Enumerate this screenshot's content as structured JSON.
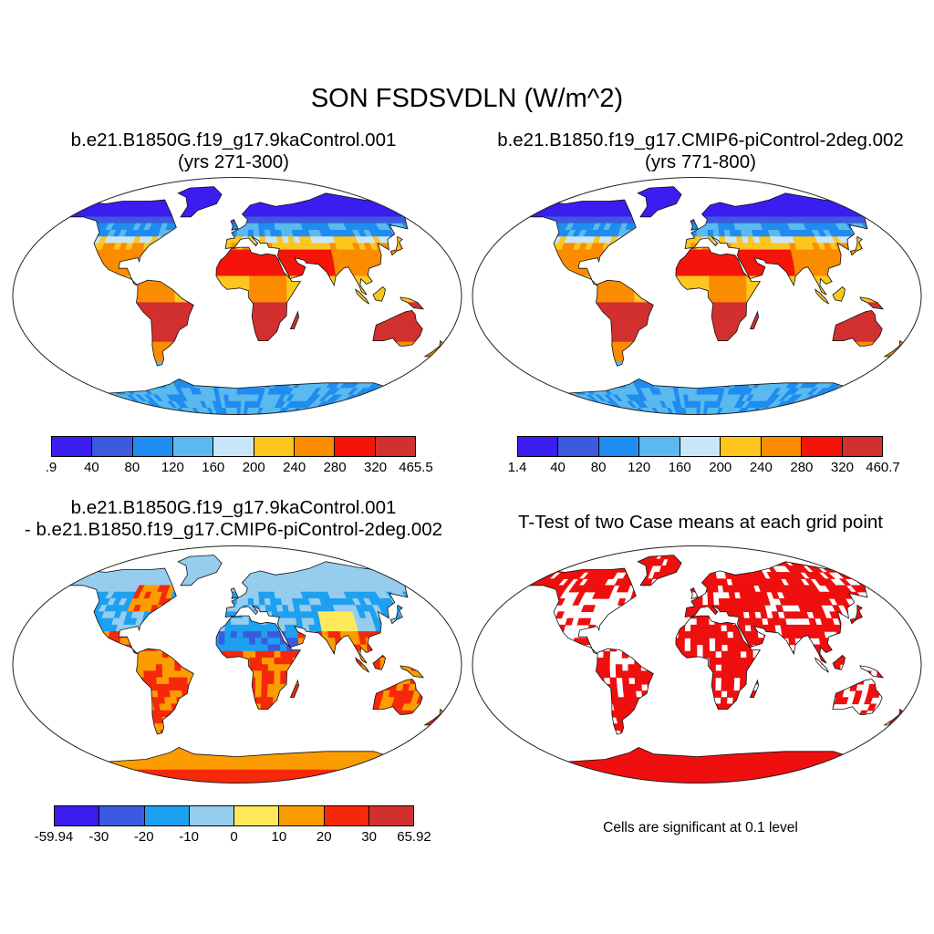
{
  "title": "SON FSDSVDLN (W/m^2)",
  "panels": [
    {
      "id": "case1",
      "title_line1": "b.e21.B1850G.f19_g17.9kaControl.001",
      "title_line2": "(yrs 271-300)",
      "colorbar": {
        "colors": [
          "#3a1ef0",
          "#3c5ae0",
          "#1e8cf0",
          "#5ab9ee",
          "#c9e6f8",
          "#fcc61e",
          "#fb8c00",
          "#f5140a",
          "#d2302f"
        ],
        "labels": [
          ".9",
          "40",
          "80",
          "120",
          "160",
          "200",
          "240",
          "280",
          "320",
          "465.5"
        ]
      }
    },
    {
      "id": "case2",
      "title_line1": "b.e21.B1850.f19_g17.CMIP6-piControl-2deg.002",
      "title_line2": "(yrs 771-800)",
      "colorbar": {
        "colors": [
          "#3a1ef0",
          "#3c5ae0",
          "#1e8cf0",
          "#5ab9ee",
          "#c9e6f8",
          "#fcc61e",
          "#fb8c00",
          "#f5140a",
          "#d2302f"
        ],
        "labels": [
          "1.4",
          "40",
          "80",
          "120",
          "160",
          "200",
          "240",
          "280",
          "320",
          "460.7"
        ]
      }
    },
    {
      "id": "difference",
      "title_line1": "b.e21.B1850G.f19_g17.9kaControl.001",
      "title_line2": "- b.e21.B1850.f19_g17.CMIP6-piControl-2deg.002",
      "colorbar": {
        "colors": [
          "#3a1ef0",
          "#3c5ae0",
          "#1ea0f0",
          "#96cdee",
          "#fde95a",
          "#fb9c00",
          "#f5280a",
          "#d2302f"
        ],
        "labels": [
          "-59.94",
          "-30",
          "-20",
          "-10",
          "0",
          "10",
          "20",
          "30",
          "65.92"
        ]
      }
    },
    {
      "id": "ttest",
      "title_line1": "T-Test of two Case means at each grid point",
      "note": "Cells are significant at 0.1 level",
      "color": "#ef0f0f"
    }
  ]
}
